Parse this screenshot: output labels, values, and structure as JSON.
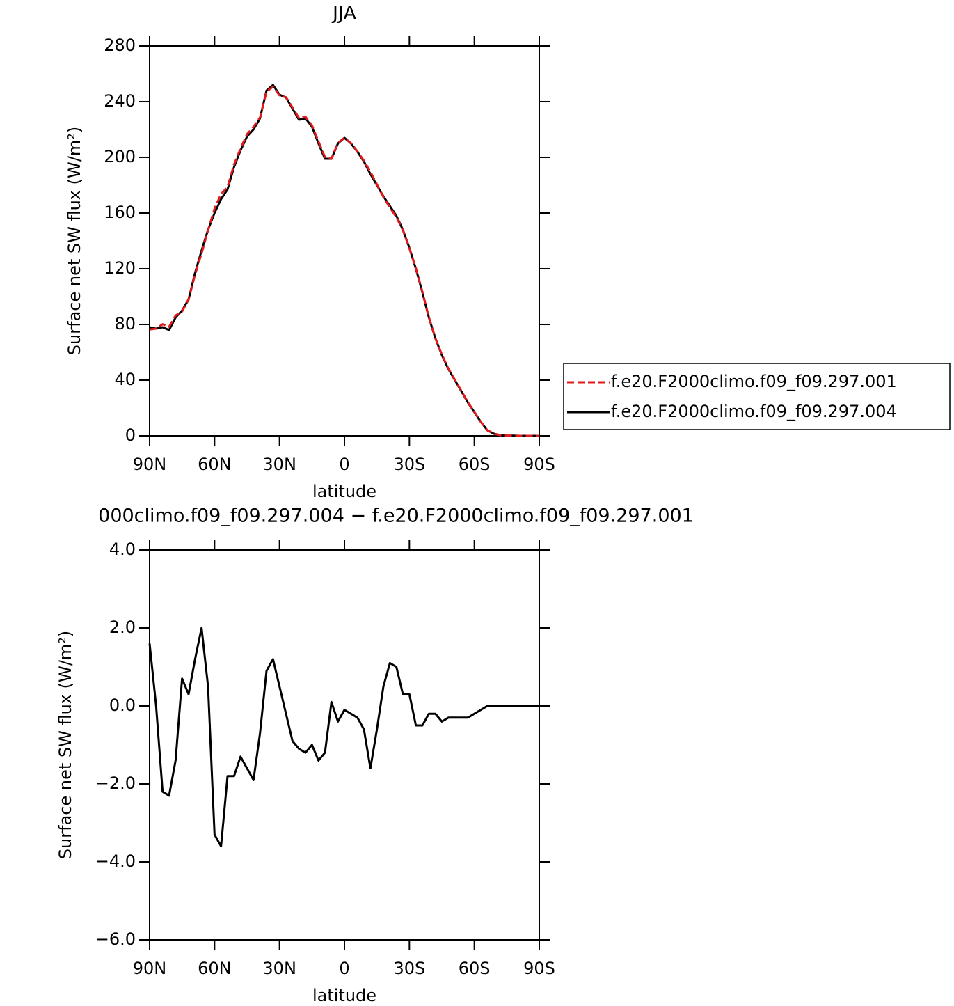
{
  "chart_data": [
    {
      "type": "line",
      "title": "JJA",
      "xlabel": "latitude",
      "ylabel": "Surface net SW flux (W/m²)",
      "x": [
        90,
        87,
        84,
        81,
        78,
        75,
        72,
        69,
        66,
        63,
        60,
        57,
        54,
        51,
        48,
        45,
        42,
        39,
        36,
        33,
        30,
        27,
        24,
        21,
        18,
        15,
        12,
        9,
        6,
        3,
        0,
        -3,
        -6,
        -9,
        -12,
        -15,
        -18,
        -21,
        -24,
        -27,
        -30,
        -33,
        -36,
        -39,
        -42,
        -45,
        -48,
        -51,
        -54,
        -57,
        -60,
        -63,
        -66,
        -69,
        -72,
        -75,
        -78,
        -81,
        -84,
        -87,
        -90
      ],
      "series": [
        {
          "name": "f.e20.F2000climo.f09_f09.297.001",
          "color": "#e31a1c",
          "linestyle": "dashed",
          "values": [
            76.4,
            77,
            80.2,
            78.3,
            86.4,
            89.3,
            97.7,
            115.8,
            131,
            147.5,
            163.3,
            173.6,
            178.8,
            194.8,
            206.3,
            216.6,
            221.9,
            228.7,
            247.1,
            250.8,
            244.5,
            243.2,
            235.9,
            228.1,
            229.2,
            223,
            211.4,
            200.2,
            198.9,
            210.4,
            214.1,
            210.2,
            204.3,
            197.6,
            189.6,
            180.6,
            171.5,
            163.9,
            157,
            147.7,
            134.7,
            120.5,
            103.5,
            85.2,
            70.2,
            58.4,
            48.3,
            40.3,
            32.3,
            24.3,
            17.2,
            10.1,
            4,
            1.5,
            0.5,
            0.2,
            0.1,
            0,
            0,
            0,
            0
          ]
        },
        {
          "name": "f.e20.F2000climo.f09_f09.297.004",
          "color": "#000000",
          "linestyle": "solid",
          "values": [
            78,
            77,
            78,
            76,
            85,
            90,
            98,
            117,
            133,
            148,
            160,
            170,
            177,
            193,
            205,
            215,
            220,
            228,
            248,
            252,
            245,
            243,
            235,
            227,
            228,
            222,
            210,
            199,
            199,
            210,
            214,
            210,
            204,
            197,
            188,
            180,
            172,
            165,
            158,
            148,
            135,
            120,
            103,
            85,
            70,
            58,
            48,
            40,
            32,
            24,
            17,
            10,
            4,
            1.5,
            0.5,
            0.2,
            0.1,
            0,
            0,
            0,
            0
          ]
        }
      ],
      "xlim": [
        90,
        -90
      ],
      "xticks": [
        {
          "value": 90,
          "label": "90N"
        },
        {
          "value": 60,
          "label": "60N"
        },
        {
          "value": 30,
          "label": "30N"
        },
        0,
        {
          "value": -30,
          "label": "30S"
        },
        {
          "value": -60,
          "label": "60S"
        },
        {
          "value": -90,
          "label": "90S"
        }
      ],
      "ylim": [
        0,
        280
      ],
      "yticks": [
        0,
        40,
        80,
        120,
        160,
        200,
        240,
        280
      ],
      "legend": "right"
    },
    {
      "type": "line",
      "title": "000climo.f09_f09.297.004 − f.e20.F2000climo.f09_f09.297.001",
      "xlabel": "latitude",
      "ylabel": "Surface net SW flux (W/m²)",
      "x": [
        90,
        87,
        84,
        81,
        78,
        75,
        72,
        69,
        66,
        63,
        60,
        57,
        54,
        51,
        48,
        45,
        42,
        39,
        36,
        33,
        30,
        27,
        24,
        21,
        18,
        15,
        12,
        9,
        6,
        3,
        0,
        -3,
        -6,
        -9,
        -12,
        -15,
        -18,
        -21,
        -24,
        -27,
        -30,
        -33,
        -36,
        -39,
        -42,
        -45,
        -48,
        -51,
        -54,
        -57,
        -60,
        -63,
        -66,
        -69,
        -72,
        -75,
        -78,
        -81,
        -84,
        -87,
        -90
      ],
      "series": [
        {
          "color": "#000000",
          "linestyle": "solid",
          "values": [
            1.6,
            0,
            -2.2,
            -2.3,
            -1.4,
            0.7,
            0.3,
            1.2,
            2,
            0.5,
            -3.3,
            -3.6,
            -1.8,
            -1.8,
            -1.3,
            -1.6,
            -1.9,
            -0.7,
            0.9,
            1.2,
            0.5,
            -0.2,
            -0.9,
            -1.1,
            -1.2,
            -1,
            -1.4,
            -1.2,
            0.1,
            -0.4,
            -0.1,
            -0.2,
            -0.3,
            -0.6,
            -1.6,
            -0.6,
            0.5,
            1.1,
            1,
            0.3,
            0.3,
            -0.5,
            -0.5,
            -0.2,
            -0.2,
            -0.4,
            -0.3,
            -0.3,
            -0.3,
            -0.3,
            -0.2,
            -0.1,
            0,
            0,
            0,
            0,
            0,
            0,
            0,
            0,
            0
          ]
        }
      ],
      "xlim": [
        90,
        -90
      ],
      "xticks": [
        {
          "value": 90,
          "label": "90N"
        },
        {
          "value": 60,
          "label": "60N"
        },
        {
          "value": 30,
          "label": "30N"
        },
        0,
        {
          "value": -30,
          "label": "30S"
        },
        {
          "value": -60,
          "label": "60S"
        },
        {
          "value": -90,
          "label": "90S"
        }
      ],
      "ylim": [
        -6,
        4
      ],
      "yticks": [
        {
          "value": -6,
          "label": "−6.0"
        },
        {
          "value": -4,
          "label": "−4.0"
        },
        {
          "value": -2,
          "label": "−2.0"
        },
        {
          "value": 0,
          "label": "0.0"
        },
        {
          "value": 2,
          "label": "2.0"
        },
        {
          "value": 4,
          "label": "4.0"
        }
      ]
    }
  ]
}
